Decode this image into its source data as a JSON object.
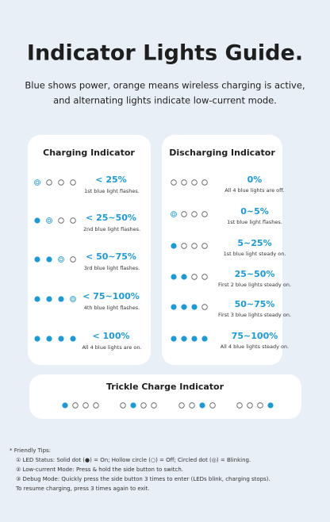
{
  "header": {
    "title": "Indicator Lights Guide.",
    "subtitle_lines": [
      "Blue shows power, orange means wireless charging is active,",
      "and alternating lights indicate low-current mode."
    ]
  },
  "charging": {
    "title": "Charging Indicator",
    "rows": [
      {
        "label": "< 25%",
        "note": "1st blue light flashes."
      },
      {
        "label": "< 25~50%",
        "note": "2nd blue light flashes."
      },
      {
        "label": "< 50~75%",
        "note": "3rd blue light flashes."
      },
      {
        "label": "< 75~100%",
        "note": "4th blue light flashes."
      },
      {
        "label": "< 100%",
        "note": "All 4 blue lights are on."
      }
    ]
  },
  "discharging": {
    "title": "Discharging Indicator",
    "rows": [
      {
        "label": "0%",
        "note": "All 4 blue lights are off."
      },
      {
        "label": "0~5%",
        "note": "1st blue light flashes."
      },
      {
        "label": "5~25%",
        "note": "1st blue light steady on."
      },
      {
        "label": "25~50%",
        "note": "First 2 blue lights steady on."
      },
      {
        "label": "50~75%",
        "note": "First 3 blue lights steady on."
      },
      {
        "label": "75~100%",
        "note": "All 4 blue lights steady on."
      }
    ]
  },
  "trickle": {
    "title": "Trickle Charge Indicator"
  },
  "tips": {
    "heading": "* Friendly Tips:",
    "lines": [
      "① LED Status: Solid dot (●) = On; Hollow circle (○) = Off; Circled dot (◎) = Blinking.",
      "② Low-current Mode: Press & hold the side button to switch.",
      "③ Debug Mode: Quickly press the side button 3 times to enter (LEDs blink, charging stops).",
      "To resume charging, press 3 times again to exit."
    ]
  }
}
